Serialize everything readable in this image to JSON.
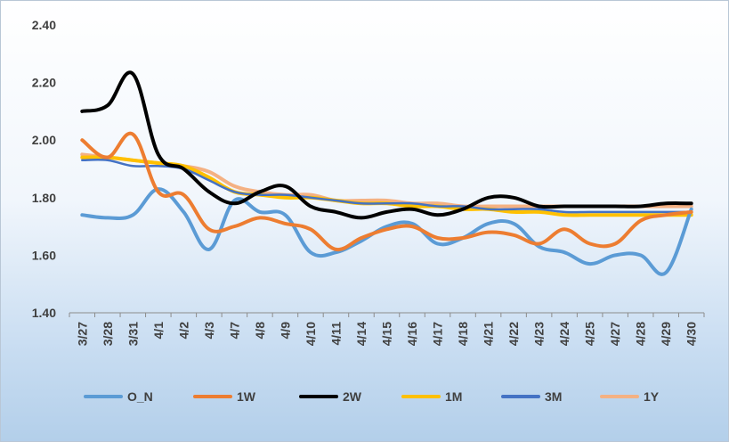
{
  "chart_data": {
    "type": "line",
    "title": "",
    "xlabel": "",
    "ylabel": "",
    "ylim": [
      1.4,
      2.4
    ],
    "yticks": [
      "1.40",
      "1.60",
      "1.80",
      "2.00",
      "2.20",
      "2.40"
    ],
    "categories": [
      "3/27",
      "3/28",
      "3/31",
      "4/1",
      "4/2",
      "4/3",
      "4/7",
      "4/8",
      "4/9",
      "4/10",
      "4/11",
      "4/14",
      "4/15",
      "4/16",
      "4/17",
      "4/18",
      "4/21",
      "4/22",
      "4/23",
      "4/24",
      "4/25",
      "4/27",
      "4/28",
      "4/29",
      "4/30"
    ],
    "legend_position": "bottom",
    "series": [
      {
        "name": "O_N",
        "color": "#5b9bd5",
        "values": [
          1.74,
          1.73,
          1.74,
          1.83,
          1.75,
          1.62,
          1.79,
          1.75,
          1.74,
          1.61,
          1.61,
          1.65,
          1.7,
          1.71,
          1.64,
          1.66,
          1.71,
          1.71,
          1.63,
          1.61,
          1.57,
          1.6,
          1.6,
          1.54,
          1.76
        ]
      },
      {
        "name": "1W",
        "color": "#ed7d31",
        "values": [
          2.0,
          1.94,
          2.02,
          1.82,
          1.81,
          1.69,
          1.7,
          1.73,
          1.71,
          1.69,
          1.62,
          1.66,
          1.69,
          1.7,
          1.66,
          1.66,
          1.68,
          1.67,
          1.64,
          1.69,
          1.64,
          1.64,
          1.72,
          1.74,
          1.75
        ]
      },
      {
        "name": "2W",
        "color": "#000000",
        "values": [
          2.1,
          2.12,
          2.23,
          1.95,
          1.9,
          1.82,
          1.78,
          1.82,
          1.84,
          1.77,
          1.75,
          1.73,
          1.75,
          1.76,
          1.74,
          1.76,
          1.8,
          1.8,
          1.77,
          1.77,
          1.77,
          1.77,
          1.77,
          1.78,
          1.78
        ]
      },
      {
        "name": "1M",
        "color": "#ffc000",
        "values": [
          1.94,
          1.94,
          1.93,
          1.92,
          1.91,
          1.87,
          1.82,
          1.81,
          1.8,
          1.8,
          1.79,
          1.78,
          1.78,
          1.77,
          1.77,
          1.76,
          1.76,
          1.75,
          1.75,
          1.74,
          1.74,
          1.74,
          1.74,
          1.74,
          1.74
        ]
      },
      {
        "name": "3M",
        "color": "#4472c4",
        "values": [
          1.93,
          1.93,
          1.91,
          1.91,
          1.9,
          1.86,
          1.82,
          1.81,
          1.81,
          1.8,
          1.79,
          1.78,
          1.78,
          1.78,
          1.77,
          1.77,
          1.76,
          1.76,
          1.76,
          1.75,
          1.75,
          1.75,
          1.75,
          1.75,
          1.75
        ]
      },
      {
        "name": "1Y",
        "color": "#f4b183",
        "values": [
          1.95,
          1.94,
          1.93,
          1.92,
          1.91,
          1.89,
          1.84,
          1.82,
          1.81,
          1.81,
          1.79,
          1.79,
          1.79,
          1.78,
          1.78,
          1.77,
          1.77,
          1.77,
          1.77,
          1.77,
          1.77,
          1.77,
          1.77,
          1.77,
          1.77
        ]
      }
    ]
  }
}
